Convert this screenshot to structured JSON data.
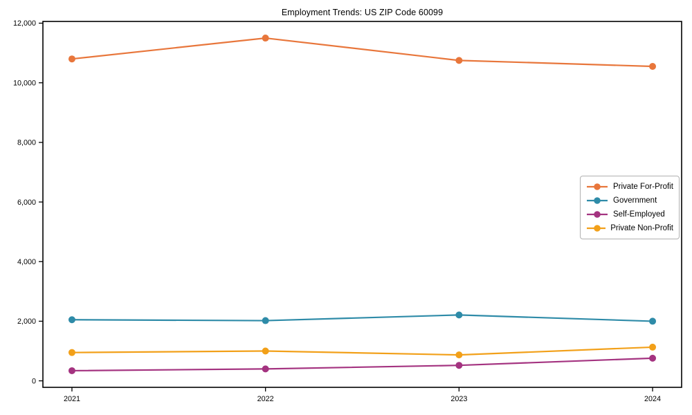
{
  "chart_data": {
    "type": "line",
    "title": "Employment Trends: US ZIP Code 60099",
    "xlabel": "",
    "ylabel": "",
    "categories": [
      "2021",
      "2022",
      "2023",
      "2024"
    ],
    "series": [
      {
        "name": "Private For-Profit",
        "color": "#E8763B",
        "values": [
          10800,
          11500,
          10750,
          10550
        ]
      },
      {
        "name": "Government",
        "color": "#2E8BA8",
        "values": [
          2050,
          2020,
          2210,
          2000
        ]
      },
      {
        "name": "Self-Employed",
        "color": "#A43380",
        "values": [
          340,
          400,
          520,
          760
        ]
      },
      {
        "name": "Private Non-Profit",
        "color": "#F2A019",
        "values": [
          950,
          1000,
          870,
          1130
        ]
      }
    ],
    "y_ticks": [
      {
        "value": 0,
        "label": "0"
      },
      {
        "value": 2000,
        "label": "2,000"
      },
      {
        "value": 4000,
        "label": "4,000"
      },
      {
        "value": 6000,
        "label": "6,000"
      },
      {
        "value": 8000,
        "label": "8,000"
      },
      {
        "value": 10000,
        "label": "10,000"
      },
      {
        "value": 12000,
        "label": "12,000"
      }
    ],
    "ylim": [
      0,
      12000
    ],
    "grid": false,
    "marker": "circle",
    "legend_position": "center-right",
    "axis_color": "#000000",
    "background_color": "#ffffff"
  }
}
